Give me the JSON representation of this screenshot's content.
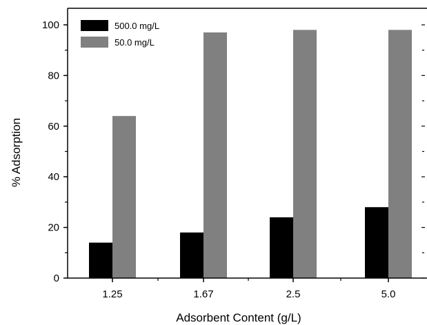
{
  "chart_data": {
    "type": "bar",
    "xlabel": "Adsorbent Content (g/L)",
    "ylabel": "% Adsorption",
    "categories": [
      "1.25",
      "1.67",
      "2.5",
      "5.0"
    ],
    "ylim": [
      0,
      100
    ],
    "yticks": [
      "0",
      "20",
      "40",
      "60",
      "80",
      "100"
    ],
    "series": [
      {
        "name": "500.0 mg/L",
        "color": "#000000",
        "values": [
          14,
          18,
          24,
          28
        ]
      },
      {
        "name": "50.0 mg/L",
        "color": "#808080",
        "values": [
          64,
          97,
          98,
          98
        ]
      }
    ],
    "legend": "top-left",
    "grid": false
  }
}
